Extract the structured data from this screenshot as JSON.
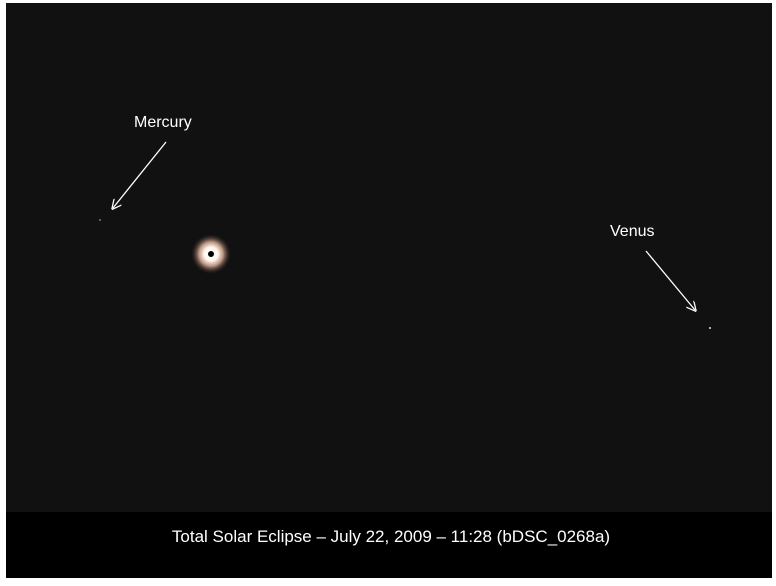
{
  "labels": {
    "mercury": "Mercury",
    "venus": "Venus"
  },
  "caption": "Total Solar Eclipse – July 22, 2009 – 11:28 (bDSC_0268a)"
}
